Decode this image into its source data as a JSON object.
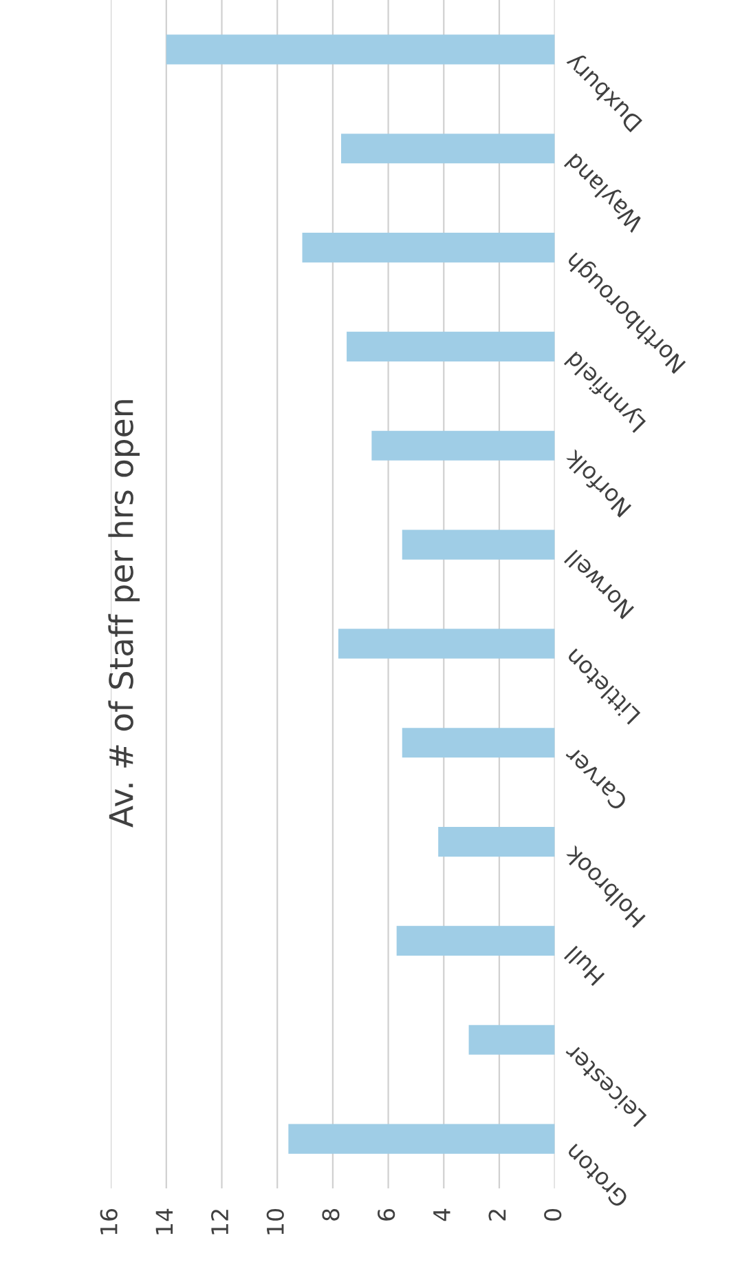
{
  "chart_data": {
    "type": "bar",
    "orientation": "horizontal",
    "title": "Av. # of Staff per hrs open",
    "categories": [
      "Duxbury",
      "Wayland",
      "Northborough",
      "Lynnfield",
      "Norfolk",
      "Norwell",
      "Littleton",
      "Carver",
      "Holbrook",
      "Hull",
      "Leicester",
      "Groton"
    ],
    "values": [
      14.0,
      7.7,
      9.1,
      7.5,
      6.6,
      5.5,
      7.8,
      5.5,
      4.2,
      5.7,
      3.1,
      9.6
    ],
    "color": "#9fcde6",
    "xlim": [
      16,
      0
    ],
    "xticks": [
      0,
      2,
      4,
      6,
      8,
      10,
      12,
      14,
      16
    ],
    "grid": "x"
  }
}
